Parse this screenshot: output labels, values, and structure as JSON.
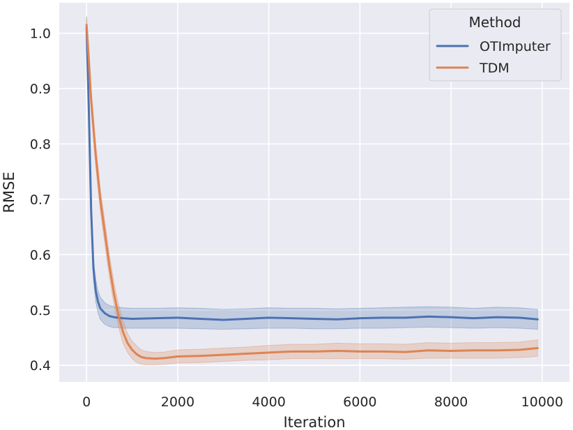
{
  "chart_data": {
    "type": "line",
    "xlabel": "Iteration",
    "ylabel": "RMSE",
    "xlim": [
      -600,
      10600
    ],
    "ylim": [
      0.37,
      1.055
    ],
    "xticks": [
      0,
      2000,
      4000,
      6000,
      8000,
      10000
    ],
    "xtick_labels": [
      "0",
      "2000",
      "4000",
      "6000",
      "8000",
      "10000"
    ],
    "yticks": [
      0.4,
      0.5,
      0.6,
      0.7,
      0.8,
      0.9,
      1.0
    ],
    "ytick_labels": [
      "0.4",
      "0.5",
      "0.6",
      "0.7",
      "0.8",
      "0.9",
      "1.0"
    ],
    "grid": true,
    "legend": {
      "title": "Method",
      "placement": "top-right"
    },
    "series": [
      {
        "name": "OTImputer",
        "color": "#4c72b0",
        "x": [
          0,
          50,
          100,
          150,
          200,
          250,
          300,
          400,
          500,
          600,
          700,
          800,
          1000,
          1500,
          2000,
          2500,
          3000,
          3500,
          4000,
          4500,
          5000,
          5500,
          6000,
          6500,
          7000,
          7500,
          8000,
          8500,
          9000,
          9500,
          9900
        ],
        "y": [
          1.01,
          0.86,
          0.68,
          0.575,
          0.535,
          0.515,
          0.503,
          0.494,
          0.489,
          0.487,
          0.486,
          0.485,
          0.484,
          0.485,
          0.486,
          0.484,
          0.482,
          0.484,
          0.486,
          0.485,
          0.484,
          0.483,
          0.485,
          0.486,
          0.486,
          0.488,
          0.487,
          0.485,
          0.487,
          0.486,
          0.483
        ],
        "lower": [
          0.99,
          0.84,
          0.66,
          0.555,
          0.515,
          0.495,
          0.483,
          0.474,
          0.47,
          0.468,
          0.468,
          0.467,
          0.467,
          0.467,
          0.467,
          0.466,
          0.465,
          0.466,
          0.467,
          0.467,
          0.466,
          0.466,
          0.467,
          0.467,
          0.468,
          0.469,
          0.468,
          0.467,
          0.468,
          0.467,
          0.465
        ],
        "upper": [
          1.03,
          0.88,
          0.7,
          0.595,
          0.555,
          0.535,
          0.523,
          0.513,
          0.508,
          0.506,
          0.505,
          0.504,
          0.503,
          0.503,
          0.504,
          0.503,
          0.501,
          0.502,
          0.504,
          0.503,
          0.503,
          0.502,
          0.503,
          0.504,
          0.505,
          0.506,
          0.505,
          0.503,
          0.505,
          0.504,
          0.501
        ]
      },
      {
        "name": "TDM",
        "color": "#dd8452",
        "x": [
          0,
          50,
          100,
          200,
          300,
          400,
          500,
          600,
          700,
          800,
          900,
          1000,
          1100,
          1200,
          1300,
          1500,
          1700,
          2000,
          2500,
          3000,
          3500,
          4000,
          4500,
          5000,
          5500,
          6000,
          6500,
          7000,
          7500,
          8000,
          8500,
          9000,
          9500,
          9900
        ],
        "y": [
          1.015,
          0.95,
          0.88,
          0.78,
          0.7,
          0.64,
          0.58,
          0.53,
          0.49,
          0.46,
          0.44,
          0.428,
          0.42,
          0.415,
          0.413,
          0.412,
          0.413,
          0.416,
          0.417,
          0.419,
          0.421,
          0.423,
          0.425,
          0.425,
          0.426,
          0.425,
          0.425,
          0.424,
          0.427,
          0.426,
          0.427,
          0.427,
          0.428,
          0.431
        ],
        "lower": [
          1.0,
          0.93,
          0.86,
          0.76,
          0.68,
          0.62,
          0.56,
          0.51,
          0.47,
          0.44,
          0.423,
          0.412,
          0.405,
          0.402,
          0.401,
          0.401,
          0.402,
          0.404,
          0.405,
          0.407,
          0.409,
          0.41,
          0.412,
          0.412,
          0.412,
          0.412,
          0.412,
          0.411,
          0.413,
          0.413,
          0.413,
          0.413,
          0.414,
          0.416
        ],
        "upper": [
          1.03,
          0.97,
          0.9,
          0.8,
          0.72,
          0.66,
          0.6,
          0.55,
          0.51,
          0.48,
          0.457,
          0.444,
          0.435,
          0.428,
          0.425,
          0.423,
          0.424,
          0.428,
          0.429,
          0.431,
          0.433,
          0.436,
          0.438,
          0.438,
          0.44,
          0.439,
          0.439,
          0.438,
          0.441,
          0.44,
          0.441,
          0.441,
          0.442,
          0.446
        ]
      }
    ]
  }
}
